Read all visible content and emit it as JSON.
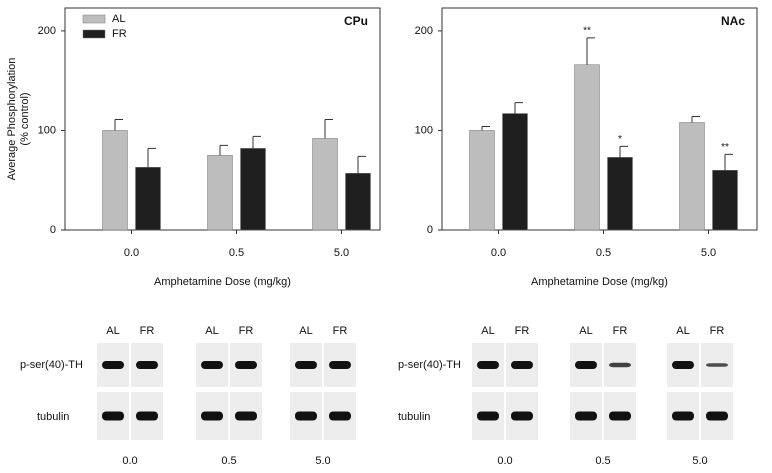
{
  "chart_data": [
    {
      "type": "bar",
      "title": "CPu",
      "ylabel": [
        "Average Phosphorylation",
        "(% control)"
      ],
      "xlabel": "Amphetamine Dose (mg/kg)",
      "categories": [
        "0.0",
        "0.5",
        "5.0"
      ],
      "ylim": [
        0,
        223
      ],
      "yticks": [
        0,
        100,
        200
      ],
      "legend": "upper left",
      "series": [
        {
          "name": "AL",
          "color": "#bdbdbd",
          "values": [
            100,
            75,
            92
          ],
          "errors": [
            11,
            10,
            19
          ]
        },
        {
          "name": "FR",
          "color": "#1f1f1f",
          "values": [
            63,
            82,
            57
          ],
          "errors": [
            19,
            12,
            17
          ]
        }
      ]
    },
    {
      "type": "bar",
      "title": "NAc",
      "xlabel": "Amphetamine Dose (mg/kg)",
      "categories": [
        "0.0",
        "0.5",
        "5.0"
      ],
      "ylim": [
        0,
        223
      ],
      "yticks": [
        0,
        100,
        200
      ],
      "series": [
        {
          "color": "#bdbdbd",
          "values": [
            100,
            166,
            108
          ],
          "errors": [
            4,
            27,
            6
          ],
          "significance": [
            null,
            "**",
            null
          ]
        },
        {
          "color": "#1f1f1f",
          "values": [
            117,
            73,
            60
          ],
          "errors": [
            11,
            11,
            16
          ],
          "significance": [
            null,
            "*",
            "**"
          ]
        }
      ]
    }
  ],
  "blots": [
    {
      "lanes": [
        "AL",
        "FR"
      ],
      "rows": [
        "p-ser(40)-TH",
        "tubulin"
      ],
      "doses": [
        "0.0",
        "0.5",
        "5.0"
      ]
    },
    {
      "lanes": [
        "AL",
        "FR"
      ],
      "rows": [
        "p-ser(40)-TH",
        "tubulin"
      ],
      "doses": [
        "0.0",
        "0.5",
        "5.0"
      ]
    }
  ]
}
